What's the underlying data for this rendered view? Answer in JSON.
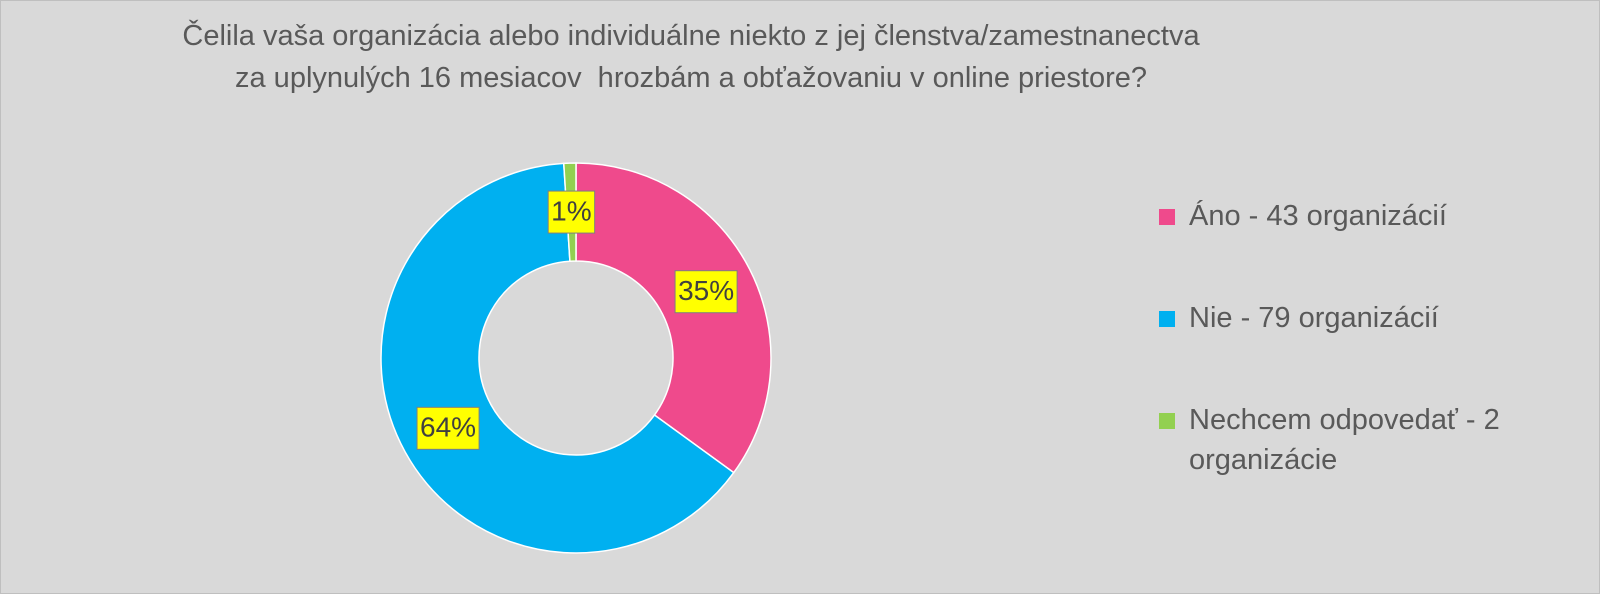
{
  "chart_data": {
    "type": "donut",
    "title": "Čelila vaša organizácia alebo individuálne niekto z jej členstva/zamestnanectva za uplynulých 16 mesiacov  hrozbám a obťažovaniu v online priestore?",
    "categories": [
      "Áno - 43 organizácií",
      "Nie - 79 organizácií",
      "Nechcem odpovedať - 2 organizácie"
    ],
    "values": [
      35,
      64,
      1
    ],
    "value_labels": [
      "35%",
      "64%",
      "1%"
    ],
    "colors": [
      "#ef4a8c",
      "#00b0f0",
      "#92d050"
    ],
    "legend": "right"
  }
}
